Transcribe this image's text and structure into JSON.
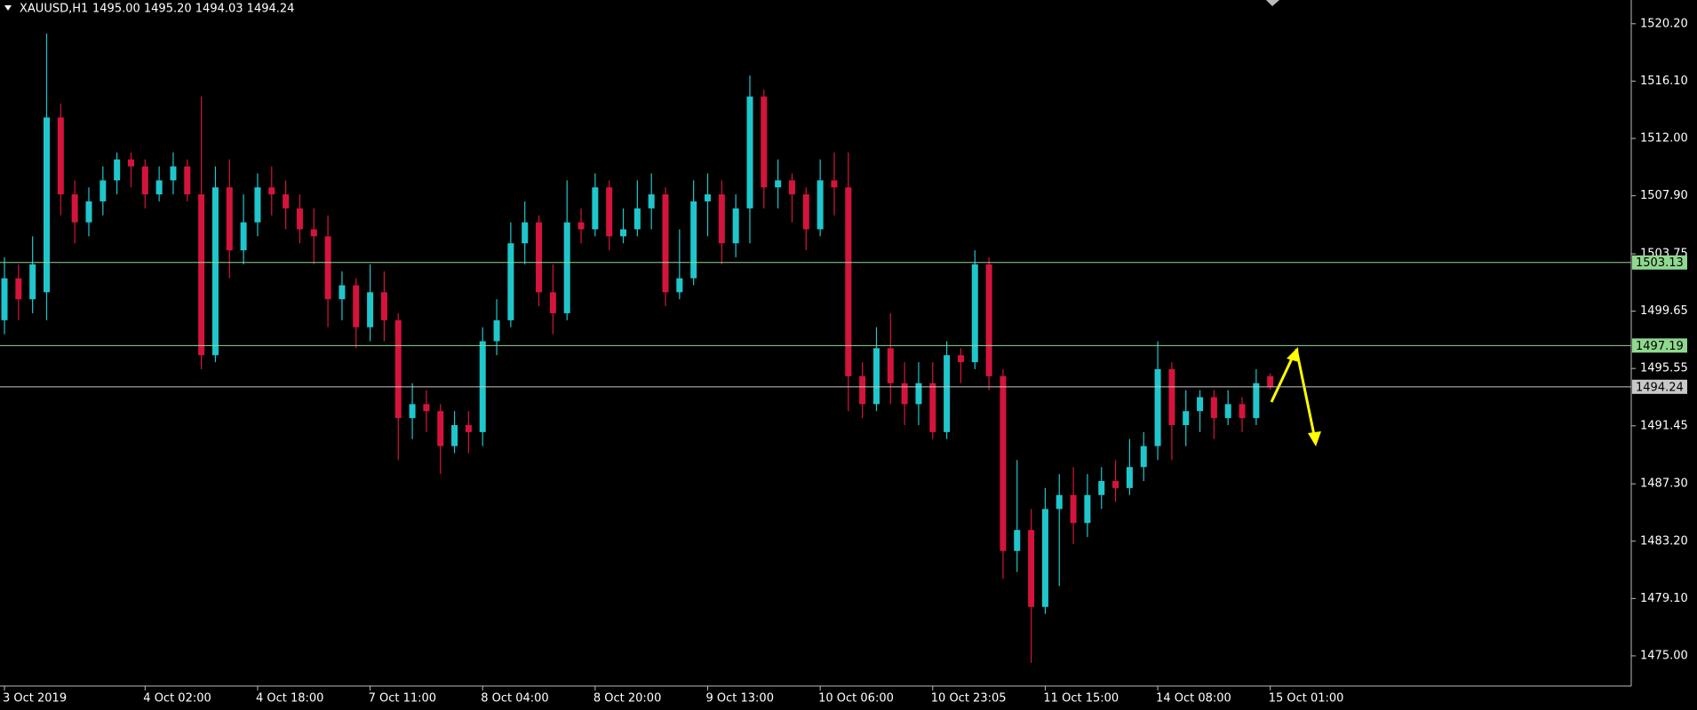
{
  "chart_data": {
    "type": "candlestick",
    "symbol": "XAUUSD,H1",
    "ohlc_text": "1495.00 1495.20 1494.03 1494.24",
    "open": [
      1499,
      1502,
      1500.5,
      1501,
      1513.5,
      1508,
      1506,
      1507.5,
      1509,
      1510.5,
      1510,
      1508,
      1509,
      1510,
      1508,
      1496.5,
      1508.5,
      1504,
      1506,
      1508.5,
      1508,
      1507,
      1505.5,
      1505,
      1500.5,
      1501.5,
      1498.5,
      1501,
      1499,
      1492,
      1493,
      1492.5,
      1490,
      1491.5,
      1491,
      1497.5,
      1499,
      1504.5,
      1506,
      1501,
      1499.5,
      1506,
      1505.5,
      1508.5,
      1505,
      1505.5,
      1507,
      1508,
      1501,
      1502,
      1507.5,
      1508,
      1504.5,
      1507,
      1515,
      1508.5,
      1509,
      1508,
      1505.5,
      1509,
      1508.5,
      1495,
      1493,
      1497,
      1494.5,
      1493,
      1494.5,
      1491,
      1496.5,
      1496,
      1503,
      1495,
      1482.5,
      1484,
      1478.5,
      1485.5,
      1486.5,
      1484.5,
      1486.5,
      1487.5,
      1487,
      1488.5,
      1490,
      1495.5,
      1491.5,
      1492.5,
      1493.5,
      1492,
      1493,
      1492,
      1495
    ],
    "high": [
      1503.5,
      1503,
      1505,
      1519.5,
      1514.5,
      1509,
      1508.5,
      1510,
      1511,
      1511,
      1510.5,
      1510,
      1511,
      1510.5,
      1515,
      1510,
      1510.5,
      1508,
      1509.5,
      1510,
      1509,
      1508,
      1507,
      1506.5,
      1502.5,
      1502,
      1503,
      1502.5,
      1499.5,
      1494.5,
      1494,
      1493,
      1492.5,
      1492.5,
      1498.5,
      1500.5,
      1506,
      1507.5,
      1506.5,
      1503,
      1509,
      1507,
      1509.5,
      1509,
      1507,
      1509,
      1509.5,
      1508.5,
      1505.5,
      1509,
      1509.5,
      1509,
      1508,
      1516.5,
      1515.5,
      1510.5,
      1509.5,
      1508.5,
      1510.5,
      1511,
      1511,
      1496,
      1498.5,
      1499.5,
      1496,
      1496,
      1496,
      1497.5,
      1497,
      1504,
      1503.5,
      1495.5,
      1489,
      1485.5,
      1487,
      1488,
      1488.5,
      1488,
      1488.5,
      1489,
      1490.5,
      1491,
      1497.5,
      1496,
      1494,
      1494,
      1494,
      1494,
      1493.5,
      1495.5,
      1495.2
    ],
    "low": [
      1498,
      1499,
      1499.5,
      1499,
      1506.5,
      1504.5,
      1505,
      1506.5,
      1508,
      1508.5,
      1507,
      1507.5,
      1508,
      1507.5,
      1495.5,
      1496,
      1502,
      1503,
      1505,
      1506.5,
      1505.5,
      1504.5,
      1503,
      1498.5,
      1499,
      1497,
      1497.5,
      1497.5,
      1489,
      1490.5,
      1491,
      1488,
      1489.5,
      1489.5,
      1490,
      1496.5,
      1498.5,
      1503,
      1500,
      1498,
      1499,
      1504.5,
      1505,
      1504,
      1504.5,
      1505,
      1505.5,
      1500,
      1500.5,
      1501.5,
      1505,
      1503,
      1503.5,
      1504.5,
      1507,
      1507,
      1506,
      1504,
      1505,
      1506.5,
      1492.5,
      1492,
      1492.5,
      1493,
      1491.5,
      1491.5,
      1490.5,
      1490.5,
      1494.5,
      1495.5,
      1494,
      1480.5,
      1481,
      1474.5,
      1478,
      1480,
      1483,
      1483.5,
      1485.5,
      1486,
      1486.5,
      1487.5,
      1489,
      1489,
      1490,
      1491,
      1490.5,
      1491.5,
      1491,
      1491.5,
      1494.03
    ],
    "close": [
      1502,
      1500.5,
      1503,
      1513.5,
      1508,
      1506,
      1507.5,
      1509,
      1510.5,
      1510,
      1508,
      1509,
      1510,
      1508,
      1496.5,
      1508.5,
      1504,
      1506,
      1508.5,
      1508,
      1507,
      1505.5,
      1505,
      1500.5,
      1501.5,
      1498.5,
      1501,
      1499,
      1492,
      1493,
      1492.5,
      1490,
      1491.5,
      1491,
      1497.5,
      1499,
      1504.5,
      1506,
      1501,
      1499.5,
      1506,
      1505.5,
      1508.5,
      1505,
      1505.5,
      1507,
      1508,
      1501,
      1502,
      1507.5,
      1508,
      1504.5,
      1507,
      1515,
      1508.5,
      1509,
      1508,
      1505.5,
      1509,
      1508.5,
      1495,
      1493,
      1497,
      1494.5,
      1493,
      1494.5,
      1491,
      1496.5,
      1496,
      1503,
      1495,
      1482.5,
      1484,
      1478.5,
      1485.5,
      1486.5,
      1484.5,
      1486.5,
      1487.5,
      1487,
      1488.5,
      1490,
      1495.5,
      1491.5,
      1492.5,
      1493.5,
      1492,
      1493,
      1492,
      1494.5,
      1494.24
    ],
    "up_color": "#1fc6cc",
    "down_color": "#d4143c",
    "ylim": [
      1472.84,
      1521.9
    ],
    "yticks": [
      {
        "value": 1520.2,
        "label": "1520.20"
      },
      {
        "value": 1516.1,
        "label": "1516.10"
      },
      {
        "value": 1512,
        "label": "1512.00"
      },
      {
        "value": 1507.9,
        "label": "1507.90"
      },
      1503.75,
      1499.65,
      1495.55,
      1491.45,
      {
        "value": 1487.3,
        "label": "1487.30"
      },
      {
        "value": 1483.2,
        "label": "1483.20"
      },
      {
        "value": 1479.1,
        "label": "1479.10"
      },
      {
        "value": 1475,
        "label": "1475.00"
      }
    ],
    "xticks": [
      {
        "value": 0,
        "label": "3 Oct 2019"
      },
      {
        "value": 10,
        "label": "4 Oct 02:00"
      },
      {
        "value": 18,
        "label": "4 Oct 18:00"
      },
      {
        "value": 26,
        "label": "7 Oct 11:00"
      },
      {
        "value": 34,
        "label": "8 Oct 04:00"
      },
      {
        "value": 42,
        "label": "8 Oct 20:00"
      },
      {
        "value": 50,
        "label": "9 Oct 13:00"
      },
      {
        "value": 58,
        "label": "10 Oct 06:00"
      },
      {
        "value": 66,
        "label": "10 Oct 23:05"
      },
      {
        "value": 74,
        "label": "11 Oct 15:00"
      },
      {
        "value": 82,
        "label": "14 Oct 08:00"
      },
      {
        "value": 90,
        "label": "15 Oct 01:00"
      }
    ],
    "levels": [
      {
        "value": 1503.13,
        "color": "#8fd88f"
      },
      {
        "value": 1497.19,
        "color": "#8fd88f"
      },
      {
        "value": 1494.24,
        "color": "#c8c8c8"
      }
    ]
  }
}
